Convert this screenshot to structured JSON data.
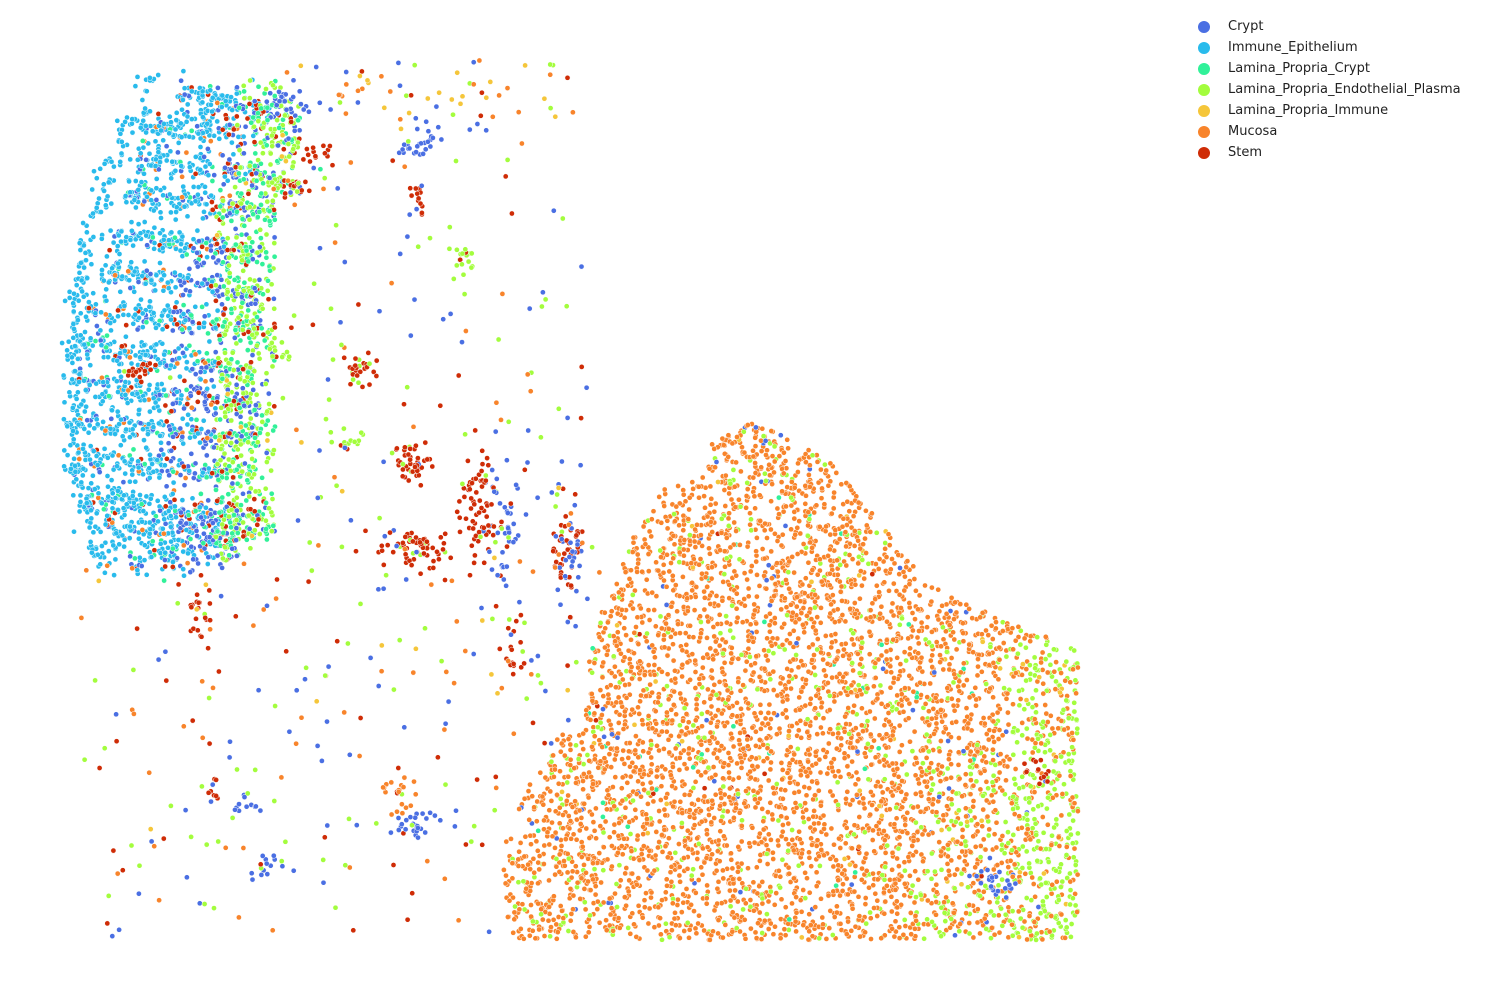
{
  "chart_data": {
    "type": "scatter",
    "title": "",
    "xlabel": "",
    "ylabel": "",
    "axes_visible": false,
    "grid": false,
    "legend_position": "top-right",
    "series": [
      {
        "name": "Crypt",
        "color": "#4a6fe3"
      },
      {
        "name": "Immune_Epithelium",
        "color": "#29bbec"
      },
      {
        "name": "Lamina_Propria_Crypt",
        "color": "#31f199"
      },
      {
        "name": "Lamina_Propria_Endothelial_Plasma",
        "color": "#a3fd3d"
      },
      {
        "name": "Lamina_Propria_Immune",
        "color": "#f5c63a"
      },
      {
        "name": "Mucosa",
        "color": "#f8842b"
      },
      {
        "name": "Stem",
        "color": "#cf2c06"
      }
    ]
  }
}
